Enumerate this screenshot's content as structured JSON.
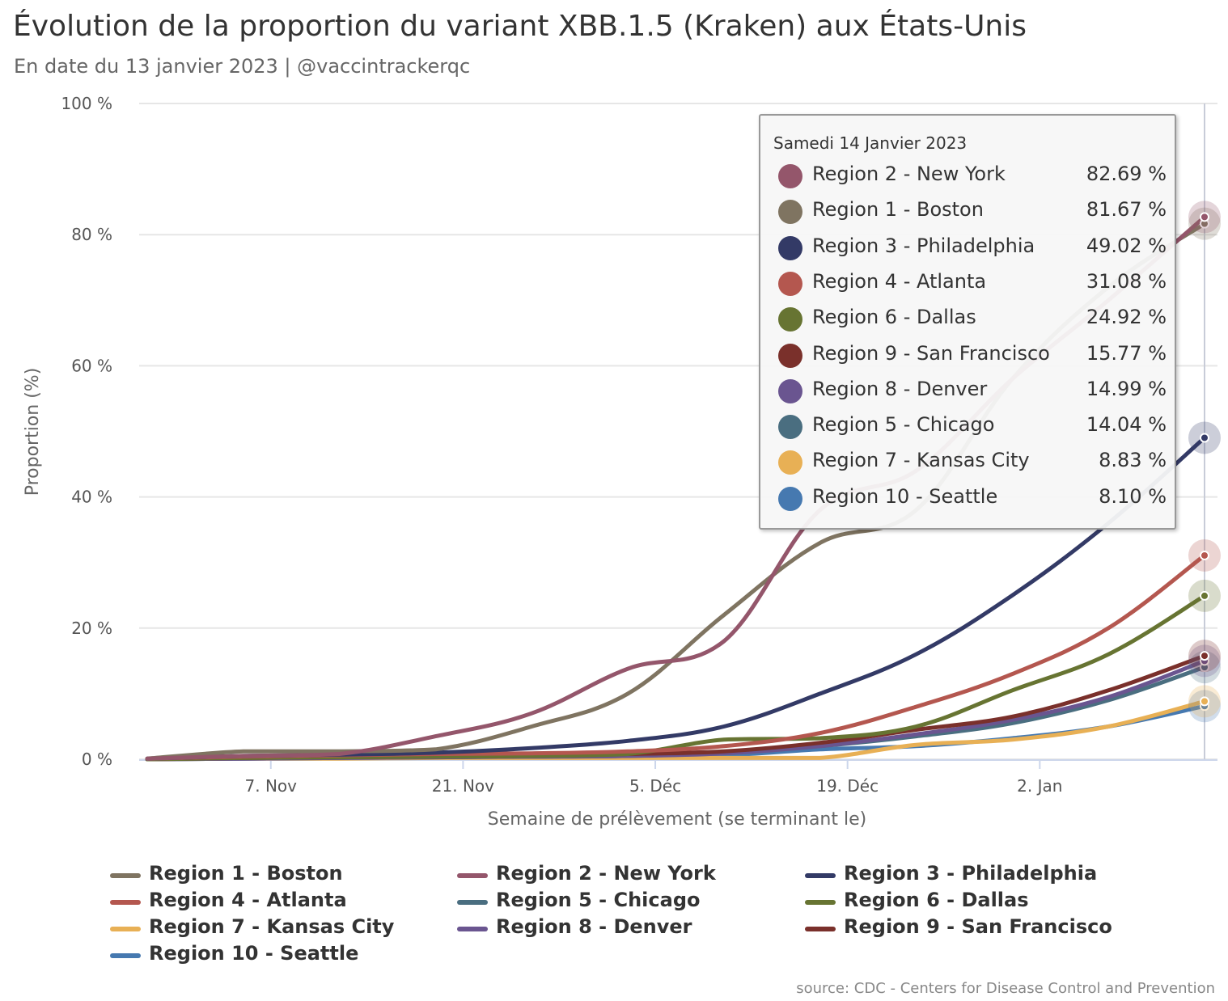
{
  "title": "Évolution de la proportion du variant XBB.1.5 (Kraken) aux États-Unis",
  "subtitle": "En date du 13 janvier 2023 | @vaccintrackerqc",
  "credits": "source: CDC - Centers for Disease Control and Prevention",
  "tooltip": {
    "date": "Samedi 14 Janvier 2023",
    "rows": [
      {
        "name": "Region 2 - New York",
        "value": "82.69 %",
        "color": "#94566b"
      },
      {
        "name": "Region 1 - Boston",
        "value": "81.67 %",
        "color": "#7f7461"
      },
      {
        "name": "Region 3 - Philadelphia",
        "value": "49.02 %",
        "color": "#333a66"
      },
      {
        "name": "Region 4 - Atlanta",
        "value": "31.08 %",
        "color": "#b4574f"
      },
      {
        "name": "Region 6 - Dallas",
        "value": "24.92 %",
        "color": "#677432"
      },
      {
        "name": "Region 9 - San Francisco",
        "value": "15.77 %",
        "color": "#7a302b"
      },
      {
        "name": "Region 8 - Denver",
        "value": "14.99 %",
        "color": "#6a5590"
      },
      {
        "name": "Region 5 - Chicago",
        "value": "14.04 %",
        "color": "#4a6e80"
      },
      {
        "name": "Region 7 - Kansas City",
        "value": "8.83 %",
        "color": "#e8b055"
      },
      {
        "name": "Region 10 - Seattle",
        "value": "8.10 %",
        "color": "#4679b0"
      }
    ]
  },
  "chart_data": {
    "type": "line",
    "xlabel": "Semaine de prélèvement (se terminant le)",
    "ylabel": "Proportion (%)",
    "x": [
      "2022-10-29",
      "2022-11-05",
      "2022-11-12",
      "2022-11-19",
      "2022-11-26",
      "2022-12-03",
      "2022-12-10",
      "2022-12-17",
      "2022-12-24",
      "2022-12-31",
      "2023-01-07",
      "2023-01-14"
    ],
    "x_ticks": [
      "7. Nov",
      "21. Nov",
      "5. Déc",
      "19. Déc",
      "2. Jan"
    ],
    "x_tick_dates": [
      "2022-11-07",
      "2022-11-21",
      "2022-12-05",
      "2022-12-19",
      "2023-01-02"
    ],
    "y_ticks": [
      "0 %",
      "20 %",
      "40 %",
      "60 %",
      "80 %",
      "100 %"
    ],
    "ylim": [
      0,
      100
    ],
    "grid": true,
    "legend_position": "bottom",
    "series": [
      {
        "name": "Region 1 - Boston",
        "color": "#7f7461",
        "values": [
          0.1,
          1.2,
          1.2,
          1.5,
          5.0,
          10.0,
          22.0,
          33.0,
          38.0,
          58.0,
          72.0,
          81.67
        ]
      },
      {
        "name": "Region 2 - New York",
        "color": "#94566b",
        "values": [
          0.1,
          0.5,
          0.8,
          3.5,
          7.0,
          13.8,
          18.0,
          38.0,
          44.0,
          58.0,
          70.0,
          82.69
        ]
      },
      {
        "name": "Region 3 - Philadelphia",
        "color": "#333a66",
        "values": [
          0.1,
          0.5,
          0.7,
          1.0,
          1.7,
          2.8,
          5.0,
          10.0,
          16.0,
          25.0,
          36.0,
          49.02
        ]
      },
      {
        "name": "Region 4 - Atlanta",
        "color": "#b4574f",
        "values": [
          0.1,
          0.4,
          0.6,
          0.8,
          0.9,
          1.2,
          2.0,
          4.0,
          8.0,
          13.0,
          20.0,
          31.08
        ]
      },
      {
        "name": "Region 5 - Chicago",
        "color": "#4a6e80",
        "values": [
          0.0,
          0.1,
          0.2,
          0.3,
          0.4,
          0.5,
          1.0,
          2.0,
          3.5,
          5.5,
          9.0,
          14.04
        ]
      },
      {
        "name": "Region 6 - Dallas",
        "color": "#677432",
        "values": [
          0.0,
          0.2,
          0.3,
          0.4,
          0.5,
          0.8,
          3.0,
          3.2,
          5.0,
          10.5,
          16.0,
          24.92
        ]
      },
      {
        "name": "Region 7 - Kansas City",
        "color": "#e8b055",
        "values": [
          0.0,
          0.1,
          0.1,
          0.2,
          0.2,
          0.2,
          0.2,
          0.2,
          2.2,
          3.0,
          5.0,
          8.83
        ]
      },
      {
        "name": "Region 8 - Denver",
        "color": "#6a5590",
        "values": [
          0.0,
          0.1,
          0.2,
          0.3,
          0.4,
          0.5,
          0.9,
          2.0,
          3.8,
          6.0,
          9.5,
          14.99
        ]
      },
      {
        "name": "Region 9 - San Francisco",
        "color": "#7a302b",
        "values": [
          0.0,
          0.2,
          0.3,
          0.4,
          0.5,
          0.8,
          1.2,
          2.5,
          4.5,
          6.5,
          10.5,
          15.77
        ]
      },
      {
        "name": "Region 10 - Seattle",
        "color": "#4679b0",
        "values": [
          0.0,
          0.1,
          0.2,
          0.3,
          0.4,
          0.5,
          0.6,
          1.5,
          2.0,
          3.2,
          5.0,
          8.1
        ]
      }
    ]
  }
}
